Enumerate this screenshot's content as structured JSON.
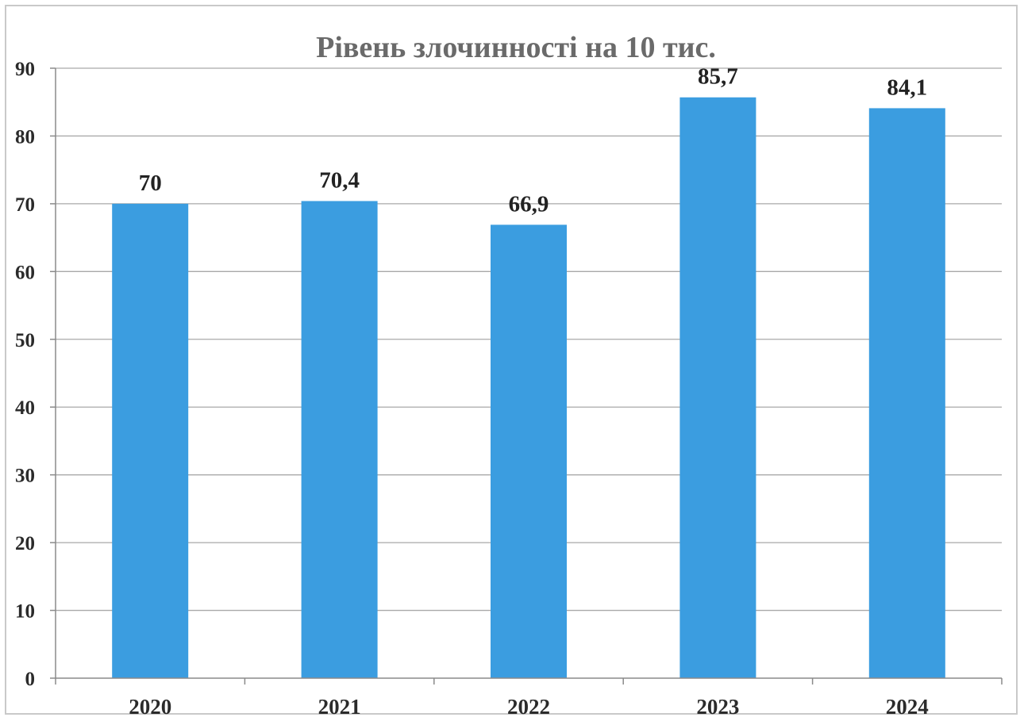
{
  "chart_data": {
    "type": "bar",
    "title": "Рівень злочинності на 10 тис.",
    "xlabel": "",
    "ylabel": "",
    "categories": [
      "2020",
      "2021",
      "2022",
      "2023",
      "2024"
    ],
    "values": [
      70,
      70.4,
      66.9,
      85.7,
      84.1
    ],
    "data_labels": [
      "70",
      "70,4",
      "66,9",
      "85,7",
      "84,1"
    ],
    "ylim": [
      0,
      90
    ],
    "yticks": [
      0,
      10,
      20,
      30,
      40,
      50,
      60,
      70,
      80,
      90
    ],
    "grid": true,
    "legend": "none",
    "bar_color": "#3b9de0"
  }
}
